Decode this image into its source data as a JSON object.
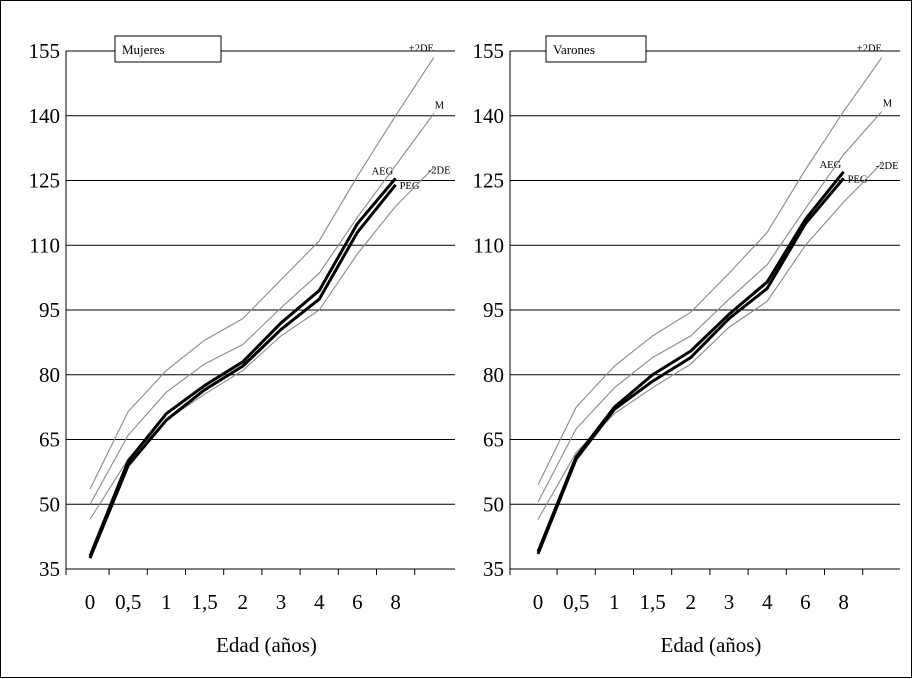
{
  "chart_data": [
    {
      "type": "line",
      "legend_title": "Mujeres",
      "xlabel": "Edad (años)",
      "ylabel": "",
      "categories": [
        "0",
        "0,5",
        "1",
        "1,5",
        "2",
        "3",
        "4",
        "6",
        "8"
      ],
      "yticks": [
        "35",
        "50",
        "65",
        "80",
        "95",
        "110",
        "125",
        "140",
        "155"
      ],
      "ylim": [
        35,
        155
      ],
      "grid": "horizontal",
      "series": [
        {
          "name": "+2DE",
          "style": "thin",
          "x": [
            0,
            1,
            2,
            3,
            4,
            5,
            6,
            7,
            8,
            9
          ],
          "values": [
            53.5,
            71.5,
            81,
            88,
            93,
            102,
            111,
            126,
            140,
            153.5
          ]
        },
        {
          "name": "M",
          "style": "thin",
          "x": [
            0,
            1,
            2,
            3,
            4,
            5,
            6,
            7,
            8,
            9
          ],
          "values": [
            50,
            66,
            76,
            82.5,
            87,
            95.5,
            103.5,
            116.5,
            128.5,
            140.5
          ]
        },
        {
          "name": "-2DE",
          "style": "thin",
          "x": [
            0,
            1,
            2,
            3,
            4,
            5,
            6,
            7,
            8,
            9
          ],
          "values": [
            46.5,
            60.5,
            69.5,
            75.5,
            81,
            89,
            95,
            108,
            119,
            128
          ]
        },
        {
          "name": "AEG",
          "style": "bold",
          "x": [
            0,
            1,
            2,
            3,
            4,
            5,
            6,
            7,
            8
          ],
          "values": [
            38,
            60,
            71,
            77.5,
            83,
            92,
            99.5,
            115,
            125.5
          ]
        },
        {
          "name": "PEG",
          "style": "bold",
          "x": [
            0,
            1,
            2,
            3,
            4,
            5,
            6,
            7,
            8
          ],
          "values": [
            37.5,
            59,
            69.5,
            76.5,
            82,
            90.5,
            97.5,
            113,
            124
          ]
        }
      ]
    },
    {
      "type": "line",
      "legend_title": "Varones",
      "xlabel": "Edad (años)",
      "ylabel": "",
      "categories": [
        "0",
        "0,5",
        "1",
        "1,5",
        "2",
        "3",
        "4",
        "6",
        "8"
      ],
      "yticks": [
        "35",
        "50",
        "65",
        "80",
        "95",
        "110",
        "125",
        "140",
        "155"
      ],
      "ylim": [
        35,
        155
      ],
      "grid": "horizontal",
      "series": [
        {
          "name": "+2DE",
          "style": "thin",
          "x": [
            0,
            1,
            2,
            3,
            4,
            5,
            6,
            7,
            8,
            9
          ],
          "values": [
            54.5,
            72.5,
            82,
            89,
            94.5,
            103.5,
            113,
            127.5,
            141,
            153.5
          ]
        },
        {
          "name": "M",
          "style": "thin",
          "x": [
            0,
            1,
            2,
            3,
            4,
            5,
            6,
            7,
            8,
            9
          ],
          "values": [
            50.5,
            67.5,
            77,
            84,
            89,
            97.5,
            105.5,
            118.5,
            131,
            141
          ]
        },
        {
          "name": "-2DE",
          "style": "thin",
          "x": [
            0,
            1,
            2,
            3,
            4,
            5,
            6,
            7,
            8,
            9
          ],
          "values": [
            46.5,
            62,
            71,
            77,
            82.5,
            91,
            97,
            110,
            120,
            129
          ]
        },
        {
          "name": "AEG",
          "style": "bold",
          "x": [
            0,
            1,
            2,
            3,
            4,
            5,
            6,
            7,
            8
          ],
          "values": [
            39,
            61,
            72.5,
            80,
            85.5,
            94,
            101.5,
            116,
            127
          ]
        },
        {
          "name": "PEG",
          "style": "bold",
          "x": [
            0,
            1,
            2,
            3,
            4,
            5,
            6,
            7,
            8
          ],
          "values": [
            38.5,
            60.5,
            72,
            78.5,
            84,
            93,
            100,
            115,
            125.5
          ]
        }
      ]
    }
  ]
}
